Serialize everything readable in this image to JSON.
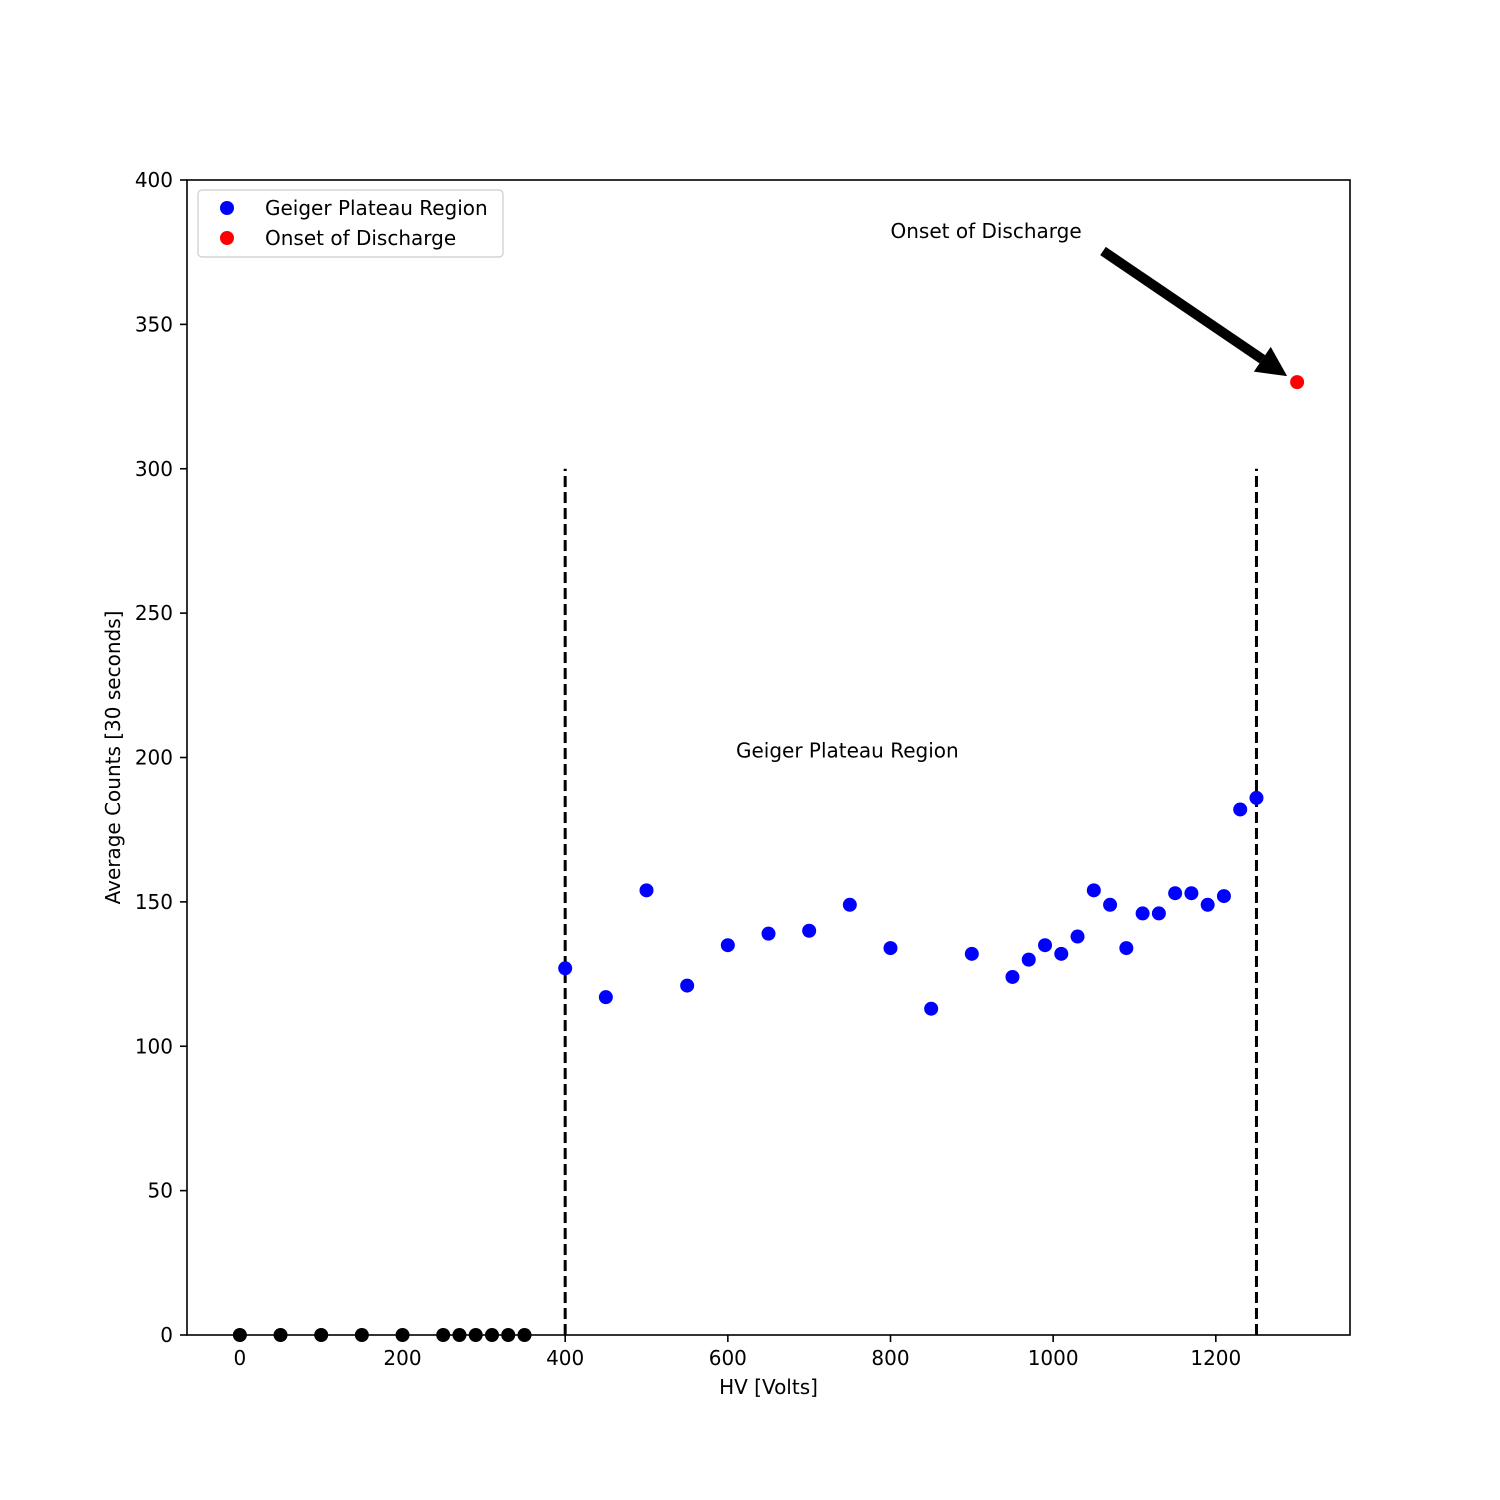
{
  "chart_data": {
    "type": "scatter",
    "xlabel": "HV [Volts]",
    "ylabel": "Average Counts [30 seconds]",
    "xlim": [
      -65,
      1365
    ],
    "ylim": [
      0,
      400
    ],
    "xticks": [
      0,
      200,
      400,
      600,
      800,
      1000,
      1200
    ],
    "yticks": [
      0,
      50,
      100,
      150,
      200,
      250,
      300,
      350,
      400
    ],
    "grid": false,
    "legend_position": "top-left",
    "series": [
      {
        "color": "#000000",
        "x": [
          0,
          50,
          100,
          150,
          200,
          250,
          270,
          290,
          310,
          330,
          350
        ],
        "y": [
          0,
          0,
          0,
          0,
          0,
          0,
          0,
          0,
          0,
          0,
          0
        ]
      },
      {
        "name": "Geiger Plateau Region",
        "color": "#0000ff",
        "x": [
          400,
          450,
          500,
          550,
          600,
          650,
          700,
          750,
          800,
          850,
          900,
          950,
          970,
          990,
          1010,
          1030,
          1050,
          1070,
          1090,
          1110,
          1130,
          1150,
          1170,
          1190,
          1210,
          1230,
          1250
        ],
        "y": [
          127,
          117,
          154,
          121,
          135,
          139,
          140,
          149,
          134,
          113,
          132,
          124,
          130,
          135,
          132,
          138,
          154,
          149,
          134,
          146,
          146,
          153,
          153,
          149,
          152,
          182,
          186
        ]
      },
      {
        "name": "Onset of Discharge",
        "color": "#ff0000",
        "x": [
          1300
        ],
        "y": [
          330
        ]
      }
    ],
    "reference_lines": [
      {
        "x": 400,
        "y_range": [
          0,
          300
        ],
        "style": "dashed",
        "color": "#000000"
      },
      {
        "x": 1250,
        "y_range": [
          0,
          300
        ],
        "style": "dashed",
        "color": "#000000"
      }
    ],
    "annotations": [
      {
        "text": "Onset of Discharge",
        "x": 800,
        "y": 380,
        "arrow_to": [
          1300,
          330
        ]
      },
      {
        "text": "Geiger Plateau Region",
        "x": 610,
        "y": 200
      }
    ]
  }
}
